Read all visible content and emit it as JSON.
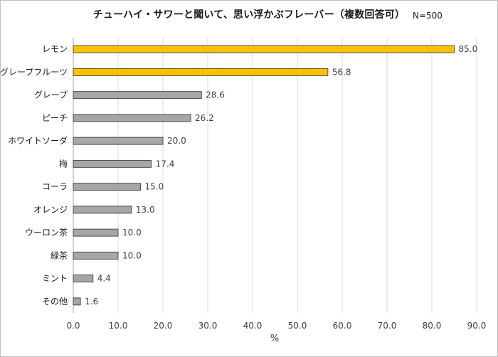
{
  "chart_data": {
    "type": "bar",
    "orientation": "horizontal",
    "title": "チューハイ・サワーと聞いて、思い浮かぶフレーバー（複数回答可）",
    "note": "N=500",
    "xlabel": "%",
    "xlim": [
      0,
      90
    ],
    "xticks": [
      "0.0",
      "10.0",
      "20.0",
      "30.0",
      "40.0",
      "50.0",
      "60.0",
      "70.0",
      "80.0",
      "90.0"
    ],
    "grid": true,
    "categories": [
      "レモン",
      "グレープフルーツ",
      "グレープ",
      "ピーチ",
      "ホワイトソーダ",
      "梅",
      "コーラ",
      "オレンジ",
      "ウーロン茶",
      "緑茶",
      "ミント",
      "その他"
    ],
    "values": [
      85.0,
      56.8,
      28.6,
      26.2,
      20.0,
      17.4,
      15.0,
      13.0,
      10.0,
      10.0,
      4.4,
      1.6
    ],
    "value_labels": [
      "85.0",
      "56.8",
      "28.6",
      "26.2",
      "20.0",
      "17.4",
      "15.0",
      "13.0",
      "10.0",
      "10.0",
      "4.4",
      "1.6"
    ],
    "bar_colors": [
      "#FFC000",
      "#FFC000",
      "#A6A6A6",
      "#A6A6A6",
      "#A6A6A6",
      "#A6A6A6",
      "#A6A6A6",
      "#A6A6A6",
      "#A6A6A6",
      "#A6A6A6",
      "#A6A6A6",
      "#A6A6A6"
    ]
  },
  "colors": {
    "highlight": "#FFC000",
    "default": "#A6A6A6",
    "gridline": "#D9D9D9",
    "bar_outline": "#404040"
  }
}
